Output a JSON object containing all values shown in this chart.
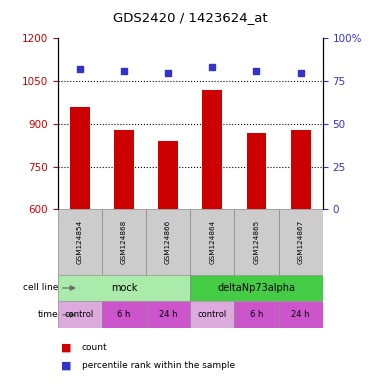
{
  "title": "GDS2420 / 1423624_at",
  "samples": [
    "GSM124854",
    "GSM124868",
    "GSM124866",
    "GSM124864",
    "GSM124865",
    "GSM124867"
  ],
  "counts": [
    960,
    878,
    840,
    1020,
    868,
    878
  ],
  "percentile_ranks": [
    82,
    81,
    80,
    83,
    81,
    80
  ],
  "ylim_left": [
    600,
    1200
  ],
  "ylim_right": [
    0,
    100
  ],
  "yticks_left": [
    600,
    750,
    900,
    1050,
    1200
  ],
  "yticks_right": [
    0,
    25,
    50,
    75,
    100
  ],
  "ytick_labels_right": [
    "0",
    "25",
    "50",
    "75",
    "100%"
  ],
  "hlines": [
    750,
    900,
    1050
  ],
  "bar_color": "#cc0000",
  "dot_color": "#3333cc",
  "cell_line_groups": [
    {
      "label": "mock",
      "color": "#aaeaaa",
      "span": [
        0,
        3
      ]
    },
    {
      "label": "deltaNp73alpha",
      "color": "#44cc44",
      "span": [
        3,
        6
      ]
    }
  ],
  "time_colors": [
    "#ddaadd",
    "#cc55cc",
    "#cc55cc",
    "#ddaadd",
    "#cc55cc",
    "#cc55cc"
  ],
  "time_labels": [
    "control",
    "6 h",
    "24 h",
    "control",
    "6 h",
    "24 h"
  ],
  "legend_count_color": "#cc0000",
  "legend_dot_color": "#3333cc",
  "left_tick_color": "#cc0000",
  "right_tick_color": "#3333cc",
  "gsm_box_color": "#cccccc",
  "gsm_border_color": "#888888"
}
